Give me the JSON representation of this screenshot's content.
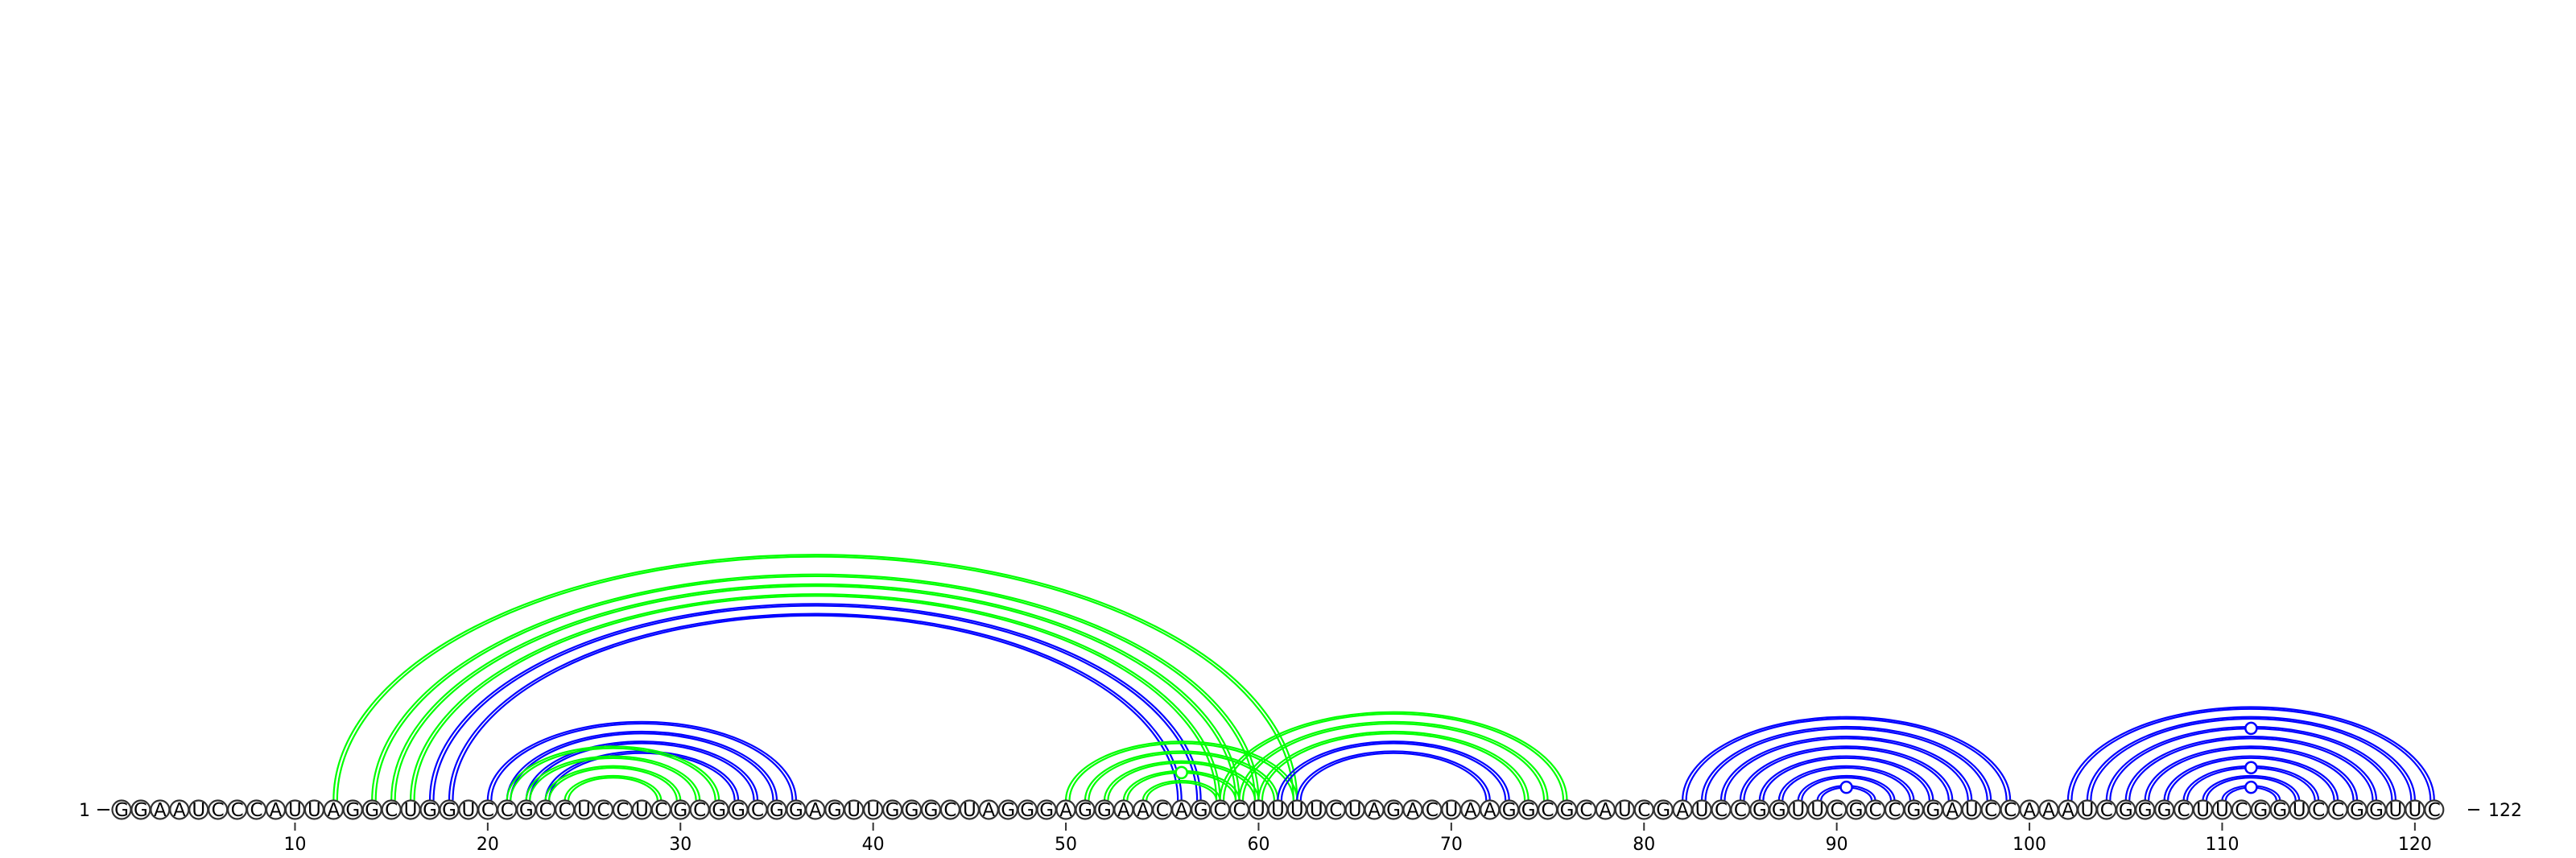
{
  "sequence": "GGAAUCCCAUUAGGCUGGUCCGCCUCCUCGCGGCGGAGUUGGGCUAGGGAGGAACAGCCUUUUCUAGACUAAGGCGCAUCGAUCCGGUUCGCCGGAUCCAAAUCGGGCUUCGGUCCGGUUC",
  "length": 122,
  "labels": {
    "start_number": "1",
    "end_number": "122",
    "dash": "−"
  },
  "ticks": [
    "10",
    "20",
    "30",
    "40",
    "50",
    "60",
    "70",
    "80",
    "90",
    "100",
    "110",
    "120"
  ],
  "colors": {
    "structure_a": "#0000ff",
    "structure_b": "#00ff00"
  },
  "arcs": [
    {
      "color": "structure_b",
      "i": 12,
      "j": 62
    },
    {
      "color": "structure_b",
      "i": 14,
      "j": 60
    },
    {
      "color": "structure_b",
      "i": 15,
      "j": 59
    },
    {
      "color": "structure_b",
      "i": 16,
      "j": 58
    },
    {
      "color": "structure_a",
      "i": 17,
      "j": 57
    },
    {
      "color": "structure_a",
      "i": 18,
      "j": 56
    },
    {
      "color": "structure_a",
      "i": 20,
      "j": 36
    },
    {
      "color": "structure_a",
      "i": 21,
      "j": 35
    },
    {
      "color": "structure_a",
      "i": 22,
      "j": 34
    },
    {
      "color": "structure_a",
      "i": 23,
      "j": 33
    },
    {
      "color": "structure_b",
      "i": 21,
      "j": 32
    },
    {
      "color": "structure_b",
      "i": 22,
      "j": 31
    },
    {
      "color": "structure_b",
      "i": 23,
      "j": 30
    },
    {
      "color": "structure_b",
      "i": 24,
      "j": 29
    },
    {
      "color": "structure_b",
      "i": 50,
      "j": 62
    },
    {
      "color": "structure_b",
      "i": 51,
      "j": 61
    },
    {
      "color": "structure_b",
      "i": 52,
      "j": 60
    },
    {
      "color": "structure_b",
      "i": 53,
      "j": 59
    },
    {
      "color": "structure_b",
      "i": 54,
      "j": 58
    },
    {
      "color": "structure_b",
      "i": 58,
      "j": 76
    },
    {
      "color": "structure_b",
      "i": 59,
      "j": 75
    },
    {
      "color": "structure_b",
      "i": 60,
      "j": 74
    },
    {
      "color": "structure_a",
      "i": 61,
      "j": 73
    },
    {
      "color": "structure_a",
      "i": 62,
      "j": 72
    },
    {
      "color": "structure_a",
      "i": 82,
      "j": 99
    },
    {
      "color": "structure_a",
      "i": 83,
      "j": 98
    },
    {
      "color": "structure_a",
      "i": 84,
      "j": 97
    },
    {
      "color": "structure_a",
      "i": 85,
      "j": 96
    },
    {
      "color": "structure_a",
      "i": 86,
      "j": 95
    },
    {
      "color": "structure_a",
      "i": 87,
      "j": 94
    },
    {
      "color": "structure_a",
      "i": 88,
      "j": 93
    },
    {
      "color": "structure_a",
      "i": 89,
      "j": 92
    },
    {
      "color": "structure_a",
      "i": 102,
      "j": 121
    },
    {
      "color": "structure_a",
      "i": 103,
      "j": 120
    },
    {
      "color": "structure_a",
      "i": 104,
      "j": 119
    },
    {
      "color": "structure_a",
      "i": 105,
      "j": 118
    },
    {
      "color": "structure_a",
      "i": 106,
      "j": 117
    },
    {
      "color": "structure_a",
      "i": 107,
      "j": 116
    },
    {
      "color": "structure_a",
      "i": 108,
      "j": 115
    },
    {
      "color": "structure_a",
      "i": 109,
      "j": 114
    },
    {
      "color": "structure_a",
      "i": 110,
      "j": 113
    }
  ],
  "noncanonical_markers": [
    {
      "color": "structure_b",
      "i": 53,
      "j": 59
    },
    {
      "color": "structure_a",
      "i": 89,
      "j": 92
    },
    {
      "color": "structure_a",
      "i": 104,
      "j": 119
    },
    {
      "color": "structure_a",
      "i": 108,
      "j": 115
    },
    {
      "color": "structure_a",
      "i": 110,
      "j": 113
    }
  ]
}
